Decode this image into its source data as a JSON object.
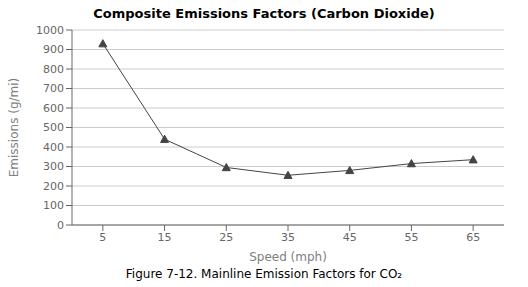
{
  "chart_data": {
    "type": "line",
    "title": "Composite Emissions Factors (Carbon Dioxide)",
    "xlabel": "Speed (mph)",
    "ylabel": "Emissions (g/mi)",
    "x": [
      5,
      15,
      25,
      35,
      45,
      55,
      65
    ],
    "values": [
      930,
      440,
      295,
      255,
      280,
      315,
      335
    ],
    "xlim": [
      0,
      70
    ],
    "xticks": [
      5,
      15,
      25,
      35,
      45,
      55,
      65
    ],
    "ylim": [
      0,
      1000
    ],
    "yticks": [
      0,
      100,
      200,
      300,
      400,
      500,
      600,
      700,
      800,
      900,
      1000
    ],
    "grid": true,
    "color": "#444444",
    "marker": "triangle",
    "line_style": "solid",
    "annotations": [
      "Figure 7-12. Mainline Emission Factors for CO₂"
    ]
  }
}
